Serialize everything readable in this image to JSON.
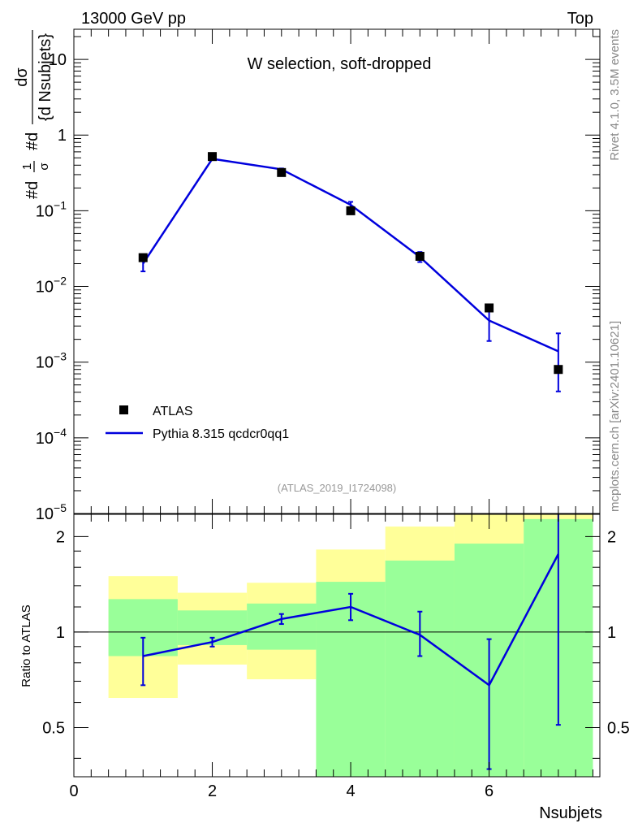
{
  "header": {
    "left": "13000 GeV pp",
    "right": "Top"
  },
  "side_labels": {
    "rivet": "Rivet 4.1.0,  3.5M events",
    "mcplots": "mcplots.cern.ch [arXiv:2401.10621]"
  },
  "legend": {
    "data_label": "ATLAS",
    "mc_label": "Pythia 8.315 qcdcr0qq1"
  },
  "colors": {
    "data": "#000000",
    "mc": "#0000dd",
    "band_inner": "#99ff99",
    "band_outer": "#ffff99"
  },
  "chart_data": [
    {
      "type": "scatter",
      "title": "W selection, soft-dropped",
      "subtitle": "(ATLAS_2019_I1724098)",
      "xlabel": "Nsubjets",
      "ylabel": "#d1/σ #d dσ/{d Nsubjets}",
      "yscale": "log",
      "xlim": [
        0,
        7.6
      ],
      "ylim": [
        1e-05,
        25
      ],
      "y_tick_labels": [
        "10^-5",
        "10^-4",
        "10^-3",
        "10^-2",
        "10^-1",
        "1",
        "10"
      ],
      "series": [
        {
          "name": "ATLAS",
          "x": [
            1,
            2,
            3,
            4,
            5,
            6,
            7
          ],
          "y": [
            0.024,
            0.52,
            0.32,
            0.1,
            0.025,
            0.0052,
            0.0008
          ]
        },
        {
          "name": "Pythia 8.315 qcdcr0qq1",
          "x": [
            1,
            2,
            3,
            4,
            5,
            6,
            7
          ],
          "y": [
            0.0201,
            0.485,
            0.353,
            0.1195,
            0.0245,
            0.00354,
            0.00139
          ],
          "y_low": [
            0.0158,
            0.475,
            0.345,
            0.108,
            0.021,
            0.0019,
            0.00041
          ],
          "y_high": [
            0.0255,
            0.495,
            0.362,
            0.131,
            0.0285,
            0.0055,
            0.0024
          ]
        }
      ]
    },
    {
      "type": "line",
      "ylabel": "Ratio to ATLAS",
      "xlabel": "Nsubjets",
      "xlim": [
        0,
        7.6
      ],
      "ylim": [
        0.35,
        2.35
      ],
      "x_ticks": [
        0,
        2,
        4,
        6
      ],
      "y_ticks": [
        0.5,
        1,
        2
      ],
      "reference_line": 1,
      "bands": [
        {
          "xlo": 0.5,
          "xhi": 1.5,
          "inner": [
            0.84,
            1.27
          ],
          "outer": [
            0.62,
            1.5
          ]
        },
        {
          "xlo": 1.5,
          "xhi": 2.5,
          "inner": [
            0.91,
            1.17
          ],
          "outer": [
            0.79,
            1.33
          ]
        },
        {
          "xlo": 2.5,
          "xhi": 3.5,
          "inner": [
            0.88,
            1.23
          ],
          "outer": [
            0.71,
            1.43
          ]
        },
        {
          "xlo": 3.5,
          "xhi": 4.5,
          "inner": [
            0.35,
            1.44
          ],
          "outer": [
            0.35,
            1.82
          ]
        },
        {
          "xlo": 4.5,
          "xhi": 5.5,
          "inner": [
            0.35,
            1.68
          ],
          "outer": [
            0.35,
            2.15
          ]
        },
        {
          "xlo": 5.5,
          "xhi": 6.5,
          "inner": [
            0.35,
            1.9
          ],
          "outer": [
            0.35,
            2.35
          ]
        },
        {
          "xlo": 6.5,
          "xhi": 7.5,
          "inner": [
            0.35,
            2.27
          ],
          "outer": [
            0.35,
            2.35
          ]
        }
      ],
      "series": [
        {
          "name": "Pythia 8.315 qcdcr0qq1",
          "x": [
            1,
            2,
            3,
            4,
            5,
            6,
            7
          ],
          "y": [
            0.84,
            0.93,
            1.1,
            1.2,
            0.98,
            0.68,
            1.76
          ],
          "y_low": [
            0.68,
            0.9,
            1.06,
            1.09,
            0.84,
            0.37,
            0.51
          ],
          "y_high": [
            0.96,
            0.96,
            1.14,
            1.32,
            1.16,
            0.95,
            2.4
          ]
        }
      ]
    }
  ]
}
